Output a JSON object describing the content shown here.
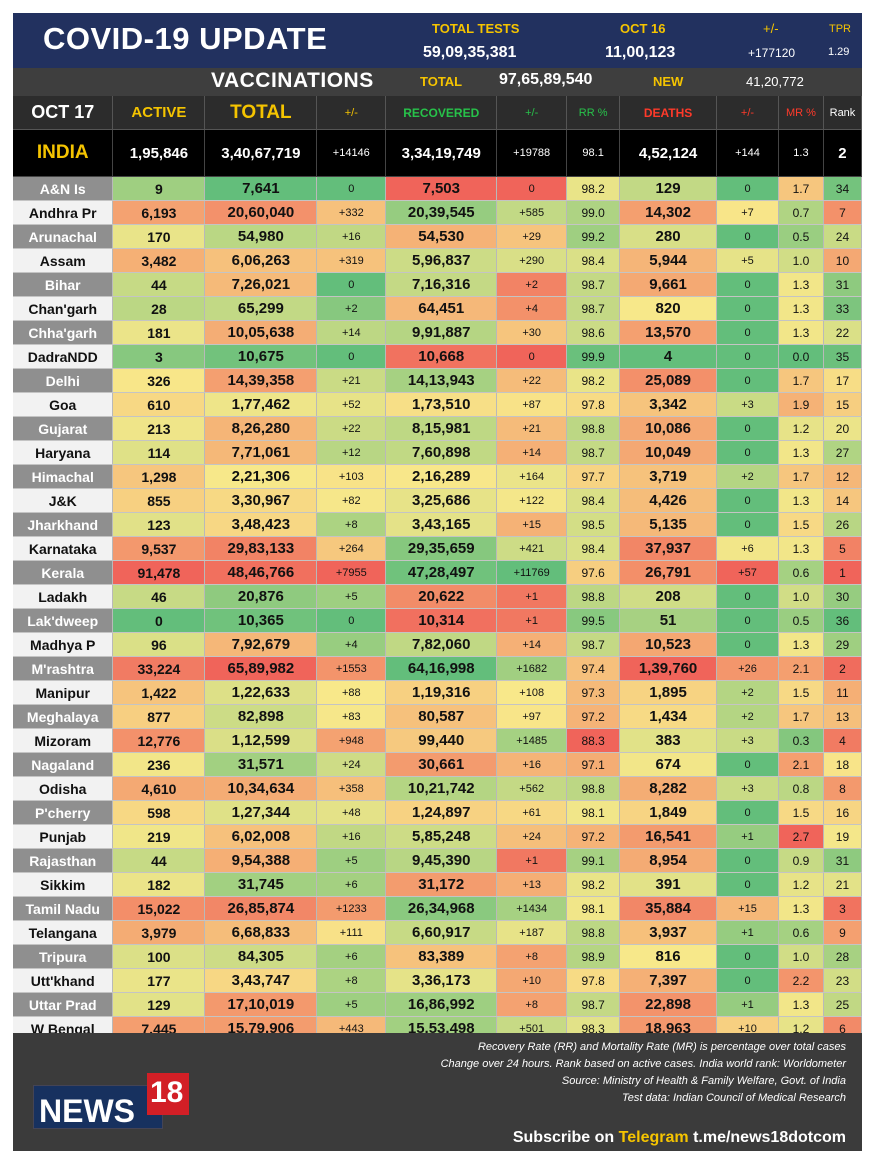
{
  "header": {
    "title": "COVID-19 UPDATE",
    "total_tests_label": "TOTAL TESTS",
    "total_tests_value": "59,09,35,381",
    "tests_date_label": "OCT 16",
    "tests_date_value": "11,00,123",
    "change_label": "+/-",
    "change_value": "+177120",
    "tpr_label": "TPR",
    "tpr_value": "1.29"
  },
  "vaccinations": {
    "title": "VACCINATIONS",
    "total_label": "TOTAL",
    "total_value": "97,65,89,540",
    "new_label": "NEW",
    "new_value": "41,20,772"
  },
  "table": {
    "columns": {
      "date": "OCT 17",
      "active": "ACTIVE",
      "total": "TOTAL",
      "total_chg": "+/-",
      "recovered": "RECOVERED",
      "rec_chg": "+/-",
      "rr": "RR %",
      "deaths": "DEATHS",
      "death_chg": "+/-",
      "mr": "MR %",
      "rank": "Rank"
    },
    "india": [
      "INDIA",
      "1,95,846",
      "3,40,67,719",
      "+14146",
      "3,34,19,749",
      "+19788",
      "98.1",
      "4,52,124",
      "+144",
      "1.3",
      "2"
    ],
    "rows": [
      [
        "A&N Is",
        "9",
        "7,641",
        "0",
        "7,503",
        "0",
        "98.2",
        "129",
        "0",
        "1.7",
        "34"
      ],
      [
        "Andhra Pr",
        "6,193",
        "20,60,040",
        "+332",
        "20,39,545",
        "+585",
        "99.0",
        "14,302",
        "+7",
        "0.7",
        "7"
      ],
      [
        "Arunachal",
        "170",
        "54,980",
        "+16",
        "54,530",
        "+29",
        "99.2",
        "280",
        "0",
        "0.5",
        "24"
      ],
      [
        "Assam",
        "3,482",
        "6,06,263",
        "+319",
        "5,96,837",
        "+290",
        "98.4",
        "5,944",
        "+5",
        "1.0",
        "10"
      ],
      [
        "Bihar",
        "44",
        "7,26,021",
        "0",
        "7,16,316",
        "+2",
        "98.7",
        "9,661",
        "0",
        "1.3",
        "31"
      ],
      [
        "Chan'garh",
        "28",
        "65,299",
        "+2",
        "64,451",
        "+4",
        "98.7",
        "820",
        "0",
        "1.3",
        "33"
      ],
      [
        "Chha'garh",
        "181",
        "10,05,638",
        "+14",
        "9,91,887",
        "+30",
        "98.6",
        "13,570",
        "0",
        "1.3",
        "22"
      ],
      [
        "DadraNDD",
        "3",
        "10,675",
        "0",
        "10,668",
        "0",
        "99.9",
        "4",
        "0",
        "0.0",
        "35"
      ],
      [
        "Delhi",
        "326",
        "14,39,358",
        "+21",
        "14,13,943",
        "+22",
        "98.2",
        "25,089",
        "0",
        "1.7",
        "17"
      ],
      [
        "Goa",
        "610",
        "1,77,462",
        "+52",
        "1,73,510",
        "+87",
        "97.8",
        "3,342",
        "+3",
        "1.9",
        "15"
      ],
      [
        "Gujarat",
        "213",
        "8,26,280",
        "+22",
        "8,15,981",
        "+21",
        "98.8",
        "10,086",
        "0",
        "1.2",
        "20"
      ],
      [
        "Haryana",
        "114",
        "7,71,061",
        "+12",
        "7,60,898",
        "+14",
        "98.7",
        "10,049",
        "0",
        "1.3",
        "27"
      ],
      [
        "Himachal",
        "1,298",
        "2,21,306",
        "+103",
        "2,16,289",
        "+164",
        "97.7",
        "3,719",
        "+2",
        "1.7",
        "12"
      ],
      [
        "J&K",
        "855",
        "3,30,967",
        "+82",
        "3,25,686",
        "+122",
        "98.4",
        "4,426",
        "0",
        "1.3",
        "14"
      ],
      [
        "Jharkhand",
        "123",
        "3,48,423",
        "+8",
        "3,43,165",
        "+15",
        "98.5",
        "5,135",
        "0",
        "1.5",
        "26"
      ],
      [
        "Karnataka",
        "9,537",
        "29,83,133",
        "+264",
        "29,35,659",
        "+421",
        "98.4",
        "37,937",
        "+6",
        "1.3",
        "5"
      ],
      [
        "Kerala",
        "91,478",
        "48,46,766",
        "+7955",
        "47,28,497",
        "+11769",
        "97.6",
        "26,791",
        "+57",
        "0.6",
        "1"
      ],
      [
        "Ladakh",
        "46",
        "20,876",
        "+5",
        "20,622",
        "+1",
        "98.8",
        "208",
        "0",
        "1.0",
        "30"
      ],
      [
        "Lak'dweep",
        "0",
        "10,365",
        "0",
        "10,314",
        "+1",
        "99.5",
        "51",
        "0",
        "0.5",
        "36"
      ],
      [
        "Madhya P",
        "96",
        "7,92,679",
        "+4",
        "7,82,060",
        "+14",
        "98.7",
        "10,523",
        "0",
        "1.3",
        "29"
      ],
      [
        "M'rashtra",
        "33,224",
        "65,89,982",
        "+1553",
        "64,16,998",
        "+1682",
        "97.4",
        "1,39,760",
        "+26",
        "2.1",
        "2"
      ],
      [
        "Manipur",
        "1,422",
        "1,22,633",
        "+88",
        "1,19,316",
        "+108",
        "97.3",
        "1,895",
        "+2",
        "1.5",
        "11"
      ],
      [
        "Meghalaya",
        "877",
        "82,898",
        "+83",
        "80,587",
        "+97",
        "97.2",
        "1,434",
        "+2",
        "1.7",
        "13"
      ],
      [
        "Mizoram",
        "12,776",
        "1,12,599",
        "+948",
        "99,440",
        "+1485",
        "88.3",
        "383",
        "+3",
        "0.3",
        "4"
      ],
      [
        "Nagaland",
        "236",
        "31,571",
        "+24",
        "30,661",
        "+16",
        "97.1",
        "674",
        "0",
        "2.1",
        "18"
      ],
      [
        "Odisha",
        "4,610",
        "10,34,634",
        "+358",
        "10,21,742",
        "+562",
        "98.8",
        "8,282",
        "+3",
        "0.8",
        "8"
      ],
      [
        "P'cherry",
        "598",
        "1,27,344",
        "+48",
        "1,24,897",
        "+61",
        "98.1",
        "1,849",
        "0",
        "1.5",
        "16"
      ],
      [
        "Punjab",
        "219",
        "6,02,008",
        "+16",
        "5,85,248",
        "+24",
        "97.2",
        "16,541",
        "+1",
        "2.7",
        "19"
      ],
      [
        "Rajasthan",
        "44",
        "9,54,388",
        "+5",
        "9,45,390",
        "+1",
        "99.1",
        "8,954",
        "0",
        "0.9",
        "31"
      ],
      [
        "Sikkim",
        "182",
        "31,745",
        "+6",
        "31,172",
        "+13",
        "98.2",
        "391",
        "0",
        "1.2",
        "21"
      ],
      [
        "Tamil Nadu",
        "15,022",
        "26,85,874",
        "+1233",
        "26,34,968",
        "+1434",
        "98.1",
        "35,884",
        "+15",
        "1.3",
        "3"
      ],
      [
        "Telangana",
        "3,979",
        "6,68,833",
        "+111",
        "6,60,917",
        "+187",
        "98.8",
        "3,937",
        "+1",
        "0.6",
        "9"
      ],
      [
        "Tripura",
        "100",
        "84,305",
        "+6",
        "83,389",
        "+8",
        "98.9",
        "816",
        "0",
        "1.0",
        "28"
      ],
      [
        "Utt'khand",
        "177",
        "3,43,747",
        "+8",
        "3,36,173",
        "+10",
        "97.8",
        "7,397",
        "0",
        "2.2",
        "23"
      ],
      [
        "Uttar Prad",
        "129",
        "17,10,019",
        "+5",
        "16,86,992",
        "+8",
        "98.7",
        "22,898",
        "+1",
        "1.3",
        "25"
      ],
      [
        "W Bengal",
        "7,445",
        "15,79,906",
        "+443",
        "15,53,498",
        "+501",
        "98.3",
        "18,963",
        "+10",
        "1.2",
        "6"
      ]
    ]
  },
  "footer": {
    "note_1": "Recovery Rate (RR) and Mortality Rate (MR) is percentage over total cases",
    "note_2": "Change over 24 hours. Rank based on active cases. India world rank: Worldometer",
    "note_3": "Source: Ministry of Health & Family Welfare, Govt. of India",
    "note_4": "Test data: Indian Council of Medical Research",
    "subscribe_prefix": "Subscribe on",
    "subscribe_platform": "Telegram",
    "subscribe_link": "t.me/news18dotcom",
    "logo_text": "NEWS",
    "logo_number": "18"
  },
  "colors": {
    "header_bg": "#22315f",
    "accent_yellow": "#f5c400",
    "recovered_green": "#27c24a",
    "deaths_red": "#ff3a2a",
    "scale_green": "#5cb85c",
    "scale_yellow": "#f5e98c",
    "scale_red": "#e8453c"
  }
}
